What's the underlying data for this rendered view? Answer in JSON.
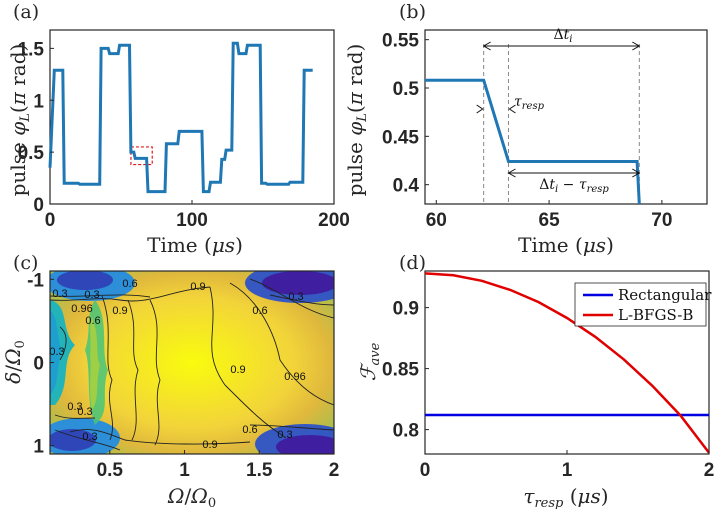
{
  "chart_data": [
    {
      "panel": "(a)",
      "type": "line",
      "xlabel": "Time (μs)",
      "ylabel": "pulse φ_L (π rad)",
      "xlim": [
        0,
        200
      ],
      "ylim": [
        0,
        1.6
      ],
      "xticks": [
        "0",
        "100",
        "200"
      ],
      "yticks": [
        "0",
        "0.5",
        "1",
        "1.5"
      ],
      "color": "#1f77b4",
      "series": [
        {
          "x": [
            0,
            3,
            4,
            9,
            10,
            15,
            16,
            20,
            21,
            26,
            28,
            35,
            36,
            41,
            42,
            44,
            45,
            48,
            49,
            50,
            51,
            53,
            54,
            56,
            57,
            59,
            60,
            62,
            63,
            65,
            66,
            68,
            69,
            72,
            73,
            76,
            77,
            81,
            82,
            90,
            91,
            94,
            95,
            102,
            103,
            107,
            108,
            112,
            113,
            116,
            117,
            120,
            121,
            123,
            124,
            128,
            129,
            132,
            133,
            138,
            139,
            142,
            143,
            148,
            149,
            152,
            153,
            158,
            159,
            168,
            169,
            175,
            176,
            178,
            179,
            185
          ],
          "y": [
            0.35,
            1.29,
            1.29,
            1.29,
            0.2,
            0.2,
            0.2,
            0.2,
            0.19,
            0.19,
            0.19,
            0.19,
            1.5,
            1.5,
            1.45,
            1.45,
            1.45,
            1.45,
            1.53,
            1.53,
            1.53,
            1.53,
            1.53,
            1.53,
            0.5,
            0.5,
            0.44,
            0.44,
            0.44,
            0.44,
            0.44,
            0.44,
            0.12,
            0.12,
            0.12,
            0.12,
            0.12,
            0.12,
            0.58,
            0.58,
            0.7,
            0.7,
            0.7,
            0.7,
            0.7,
            0.7,
            0.12,
            0.12,
            0.21,
            0.21,
            0.21,
            0.21,
            0.43,
            0.43,
            0.52,
            0.52,
            1.55,
            1.55,
            1.45,
            1.45,
            1.53,
            1.53,
            1.53,
            1.53,
            0.2,
            0.2,
            0.19,
            0.19,
            0.19,
            0.19,
            0.21,
            0.21,
            0.21,
            0.21,
            1.29,
            1.29
          ]
        }
      ],
      "highlight_box": {
        "x": [
          57,
          72
        ],
        "y": [
          0.38,
          0.55
        ],
        "color": "#e31a1c"
      }
    },
    {
      "panel": "(b)",
      "type": "line",
      "xlabel": "Time (μs)",
      "ylabel": "pulse φ_L (π rad)",
      "xlim": [
        59.5,
        72
      ],
      "ylim": [
        0.38,
        0.56
      ],
      "xticks": [
        "60",
        "65",
        "70"
      ],
      "yticks": [
        "0.4",
        "0.45",
        "0.5",
        "0.55"
      ],
      "color": "#1f77b4",
      "series": [
        {
          "x": [
            59.5,
            62.1,
            63.2,
            68.9,
            69.0
          ],
          "y": [
            0.508,
            0.508,
            0.424,
            0.424,
            0.38
          ]
        }
      ],
      "dashed_lines_x": [
        62.1,
        63.2,
        69.0
      ],
      "annotations": {
        "delta_t": "Δt_i",
        "tau": "τ_resp",
        "delta_minus_tau": "Δt_i − τ_resp"
      }
    },
    {
      "panel": "(c)",
      "type": "heatmap",
      "xlabel": "Ω/Ω_0",
      "ylabel": "δ/Ω_0",
      "xlim": [
        0.1,
        2
      ],
      "ylim": [
        1.1,
        -1.1
      ],
      "xticks": [
        "0.5",
        "1",
        "1.5",
        "2"
      ],
      "yticks": [
        "-1",
        "0",
        "1"
      ],
      "colormap": "parula",
      "contour_labels": [
        "0.3",
        "0.6",
        "0.96",
        "0.9",
        "0.9",
        "0.3",
        "0.6",
        "0.9",
        "0.96",
        "0.6",
        "0.3",
        "0.3",
        "0.3",
        "0.3",
        "0.9",
        "0.6",
        "0.3",
        "0.3"
      ]
    },
    {
      "panel": "(d)",
      "type": "line",
      "xlabel": "τ_resp (μs)",
      "ylabel": "ℱ_ave",
      "xlim": [
        0,
        2
      ],
      "ylim": [
        0.78,
        0.93
      ],
      "xticks": [
        "0",
        "1",
        "2"
      ],
      "yticks": [
        "0.8",
        "0.85",
        "0.9"
      ],
      "legend_position": "top-right",
      "series": [
        {
          "name": "Rectangular",
          "color": "#0000e0",
          "x": [
            0,
            2
          ],
          "y": [
            0.812,
            0.812
          ]
        },
        {
          "name": "L-BFGS-B",
          "color": "#e00000",
          "x": [
            0,
            0.2,
            0.4,
            0.6,
            0.8,
            1.0,
            1.2,
            1.4,
            1.6,
            1.8,
            2.0
          ],
          "y": [
            0.928,
            0.9265,
            0.922,
            0.9145,
            0.9045,
            0.8915,
            0.876,
            0.8575,
            0.836,
            0.8115,
            0.781
          ]
        }
      ]
    }
  ]
}
